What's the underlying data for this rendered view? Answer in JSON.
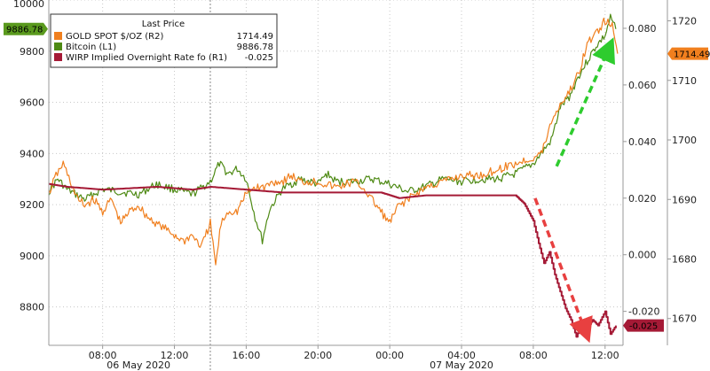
{
  "chart_data": {
    "type": "line",
    "grid": true,
    "legend_position": "top-left",
    "legend": {
      "title": "Last Price",
      "entries": [
        {
          "name": "GOLD SPOT $/OZ",
          "axis": "(R2)",
          "value": "1714.49",
          "color": "#f07f1e"
        },
        {
          "name": "Bitcoin",
          "axis": "(L1)",
          "value": "9886.78",
          "color": "#4e8a14"
        },
        {
          "name": "WIRP Implied Overnight Rate fo",
          "axis": "(R1)",
          "value": "-0.025",
          "color": "#a51a36"
        }
      ]
    },
    "x_axis": {
      "range": [
        5.0,
        37.0
      ],
      "tick_values": [
        8,
        12,
        16,
        20,
        24,
        28,
        32,
        36
      ],
      "tick_labels": [
        "08:00",
        "12:00",
        "16:00",
        "20:00",
        "00:00",
        "04:00",
        "08:00",
        "12:00"
      ],
      "date_labels": [
        {
          "text": "06 May 2020",
          "at": 10
        },
        {
          "text": "07 May 2020",
          "at": 28
        }
      ],
      "day_boundary": 14
    },
    "y_left": {
      "range": [
        8650,
        10000
      ],
      "ticks": [
        8800,
        9000,
        9200,
        9400,
        9600,
        9800,
        10000
      ],
      "current_value_label": "9886.78"
    },
    "y_right1": {
      "range": [
        -0.032,
        0.09
      ],
      "ticks": [
        -0.02,
        0.0,
        0.02,
        0.04,
        0.06,
        0.08
      ],
      "tick_labels": [
        "-0.020",
        "0.000",
        "0.020",
        "0.040",
        "0.060",
        "0.080"
      ],
      "current_value_label": "-0.025"
    },
    "y_right2": {
      "range": [
        1665.5,
        1723.5
      ],
      "ticks": [
        1670,
        1680,
        1690,
        1700,
        1710,
        1720
      ],
      "current_value_label": "1714.49"
    },
    "series": [
      {
        "name": "Bitcoin",
        "axis": "left",
        "color": "#4e8a14",
        "points": [
          [
            5.0,
            9250
          ],
          [
            5.5,
            9300
          ],
          [
            6.0,
            9260
          ],
          [
            6.5,
            9240
          ],
          [
            7.0,
            9220
          ],
          [
            7.5,
            9240
          ],
          [
            8.0,
            9260
          ],
          [
            9.0,
            9250
          ],
          [
            10.0,
            9240
          ],
          [
            11.0,
            9280
          ],
          [
            12.0,
            9260
          ],
          [
            13.0,
            9240
          ],
          [
            14.0,
            9290
          ],
          [
            14.5,
            9360
          ],
          [
            15.0,
            9320
          ],
          [
            15.5,
            9340
          ],
          [
            16.0,
            9300
          ],
          [
            16.5,
            9150
          ],
          [
            16.9,
            9060
          ],
          [
            17.3,
            9180
          ],
          [
            18.0,
            9260
          ],
          [
            19.0,
            9300
          ],
          [
            20.0,
            9280
          ],
          [
            20.5,
            9320
          ],
          [
            21.0,
            9290
          ],
          [
            22.0,
            9290
          ],
          [
            23.0,
            9300
          ],
          [
            24.0,
            9280
          ],
          [
            25.0,
            9250
          ],
          [
            26.0,
            9270
          ],
          [
            27.0,
            9300
          ],
          [
            28.0,
            9290
          ],
          [
            29.0,
            9300
          ],
          [
            30.0,
            9300
          ],
          [
            31.0,
            9320
          ],
          [
            32.0,
            9360
          ],
          [
            33.0,
            9450
          ],
          [
            33.5,
            9580
          ],
          [
            34.0,
            9620
          ],
          [
            34.5,
            9700
          ],
          [
            35.0,
            9760
          ],
          [
            35.5,
            9820
          ],
          [
            36.0,
            9860
          ],
          [
            36.3,
            9930
          ],
          [
            36.6,
            9886.78
          ]
        ]
      },
      {
        "name": "GOLD SPOT $/OZ",
        "axis": "right2",
        "color": "#f07f1e",
        "points": [
          [
            5.0,
            1691
          ],
          [
            5.4,
            1694
          ],
          [
            5.8,
            1696
          ],
          [
            6.2,
            1693
          ],
          [
            6.6,
            1690
          ],
          [
            7.0,
            1689
          ],
          [
            7.5,
            1690
          ],
          [
            8.0,
            1688
          ],
          [
            8.5,
            1690
          ],
          [
            9.0,
            1686
          ],
          [
            9.5,
            1688
          ],
          [
            10.0,
            1689
          ],
          [
            10.5,
            1687
          ],
          [
            11.0,
            1686
          ],
          [
            11.5,
            1685
          ],
          [
            12.0,
            1684
          ],
          [
            12.5,
            1683
          ],
          [
            13.0,
            1684
          ],
          [
            13.5,
            1682
          ],
          [
            14.0,
            1686
          ],
          [
            14.3,
            1679
          ],
          [
            14.6,
            1686
          ],
          [
            15.0,
            1688
          ],
          [
            15.5,
            1688
          ],
          [
            16.0,
            1691
          ],
          [
            16.5,
            1692
          ],
          [
            17.0,
            1692
          ],
          [
            17.5,
            1693
          ],
          [
            18.0,
            1693
          ],
          [
            18.5,
            1694
          ],
          [
            19.0,
            1693
          ],
          [
            20.0,
            1693
          ],
          [
            21.0,
            1692
          ],
          [
            22.0,
            1693
          ],
          [
            22.5,
            1692
          ],
          [
            23.0,
            1690
          ],
          [
            23.5,
            1688
          ],
          [
            24.0,
            1686
          ],
          [
            24.5,
            1689
          ],
          [
            25.0,
            1690
          ],
          [
            26.0,
            1692
          ],
          [
            27.0,
            1693
          ],
          [
            28.0,
            1694
          ],
          [
            29.0,
            1694
          ],
          [
            30.0,
            1695
          ],
          [
            31.0,
            1696
          ],
          [
            32.0,
            1697
          ],
          [
            32.5,
            1698
          ],
          [
            33.0,
            1703
          ],
          [
            33.5,
            1706
          ],
          [
            34.0,
            1708
          ],
          [
            34.5,
            1711
          ],
          [
            35.0,
            1716
          ],
          [
            35.5,
            1718
          ],
          [
            36.0,
            1720
          ],
          [
            36.4,
            1719
          ],
          [
            36.7,
            1714.49
          ]
        ]
      },
      {
        "name": "WIRP Implied Overnight Rate fo",
        "axis": "right1",
        "color": "#a51a36",
        "points": [
          [
            5.0,
            0.025
          ],
          [
            6.0,
            0.024
          ],
          [
            8.0,
            0.023
          ],
          [
            11.0,
            0.024
          ],
          [
            13.0,
            0.023
          ],
          [
            14.0,
            0.024
          ],
          [
            16.0,
            0.023
          ],
          [
            18.0,
            0.022
          ],
          [
            21.0,
            0.022
          ],
          [
            23.5,
            0.022
          ],
          [
            24.5,
            0.02
          ],
          [
            26.0,
            0.021
          ],
          [
            28.0,
            0.021
          ],
          [
            30.0,
            0.021
          ],
          [
            31.0,
            0.021
          ],
          [
            31.5,
            0.018
          ],
          [
            32.0,
            0.012
          ],
          [
            32.3,
            0.004
          ],
          [
            32.6,
            -0.003
          ],
          [
            32.9,
            0.001
          ],
          [
            33.2,
            -0.007
          ],
          [
            33.5,
            -0.013
          ],
          [
            33.8,
            -0.019
          ],
          [
            34.1,
            -0.023
          ],
          [
            34.4,
            -0.029
          ],
          [
            34.7,
            -0.024
          ],
          [
            35.0,
            -0.026
          ],
          [
            35.3,
            -0.023
          ],
          [
            35.6,
            -0.025
          ],
          [
            36.0,
            -0.02
          ],
          [
            36.3,
            -0.028
          ],
          [
            36.6,
            -0.025
          ]
        ]
      }
    ],
    "annotations": [
      {
        "kind": "arrow",
        "color": "#2ecc2e",
        "from": [
          33.3,
          9350
        ],
        "to": [
          36.2,
          9810
        ],
        "axis": "left"
      },
      {
        "kind": "arrow",
        "color": "#e84040",
        "from": [
          32.1,
          9225
        ],
        "to": [
          34.9,
          8705
        ],
        "axis": "left"
      }
    ]
  }
}
